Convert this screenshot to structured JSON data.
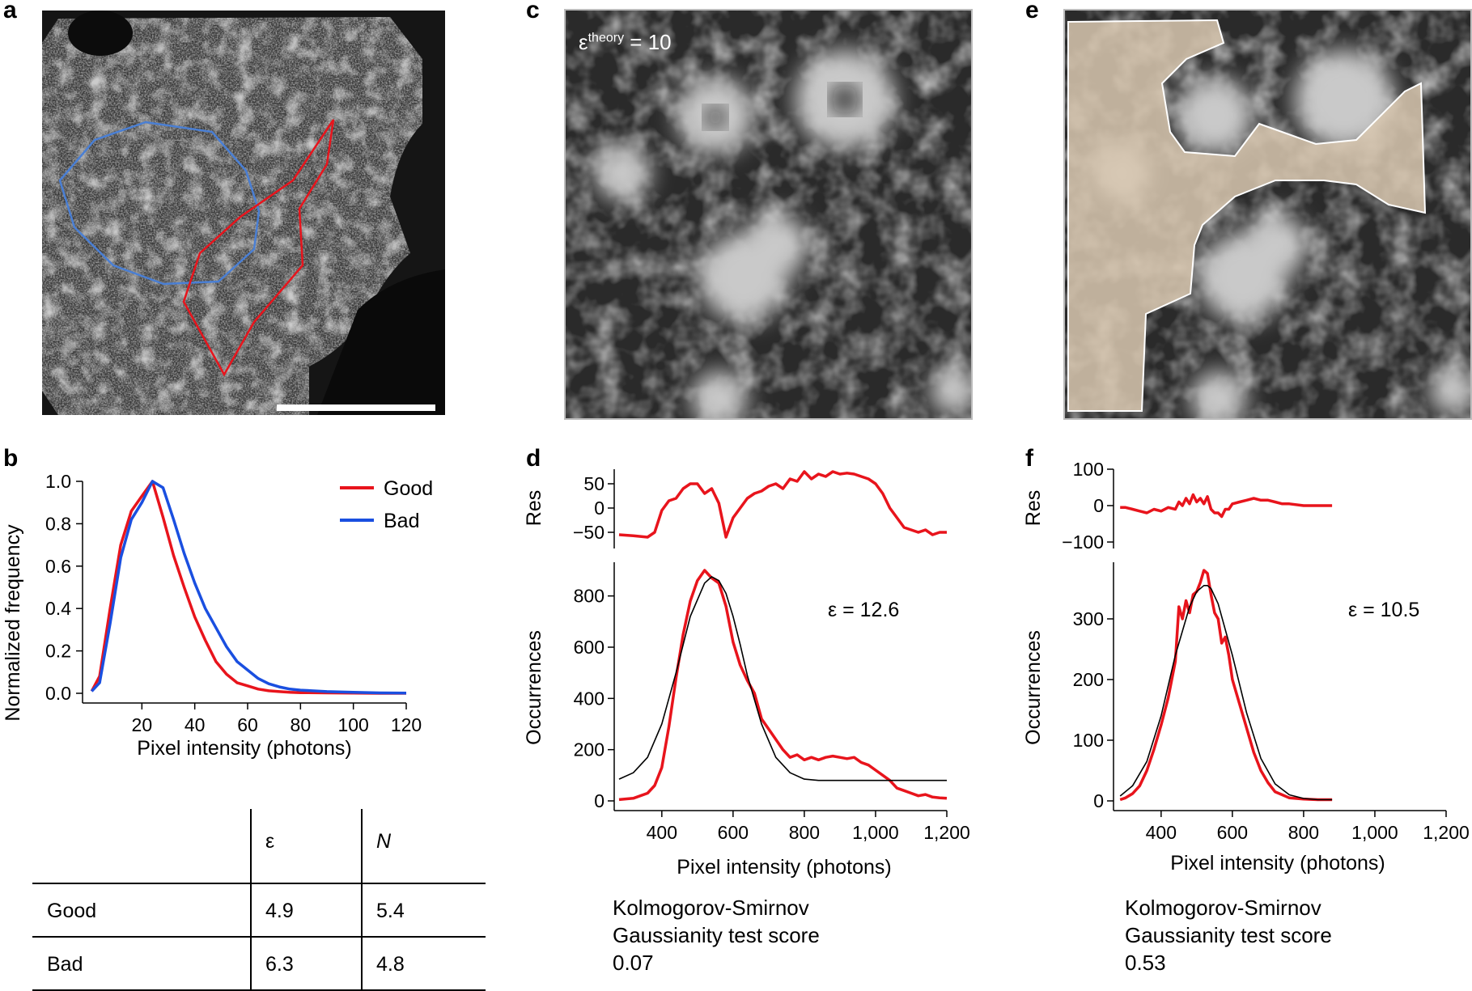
{
  "panels": {
    "a": {
      "letter": "a"
    },
    "b": {
      "letter": "b"
    },
    "c": {
      "letter": "c",
      "annotation_symbol": "ε",
      "annotation_sup": "theory",
      "annotation_value": "= 10"
    },
    "d": {
      "letter": "d"
    },
    "e": {
      "letter": "e"
    },
    "f": {
      "letter": "f"
    }
  },
  "colors": {
    "good": "#e8141c",
    "bad": "#1a4fe0",
    "fit": "#000000",
    "roi_blue": "#4a7fd4",
    "roi_red": "#e8141c",
    "mask": "#d9c8b0"
  },
  "chart_data": [
    {
      "id": "b",
      "type": "line",
      "xlabel": "Pixel intensity (photons)",
      "ylabel": "Normalized frequency",
      "xlim": [
        0,
        120
      ],
      "ylim": [
        0,
        1.0
      ],
      "xticks": [
        "20",
        "40",
        "60",
        "80",
        "100",
        "120"
      ],
      "yticks": [
        "0.0",
        "0.2",
        "0.4",
        "0.6",
        "0.8",
        "1.0"
      ],
      "legend": [
        "Good",
        "Bad"
      ],
      "series": [
        {
          "name": "Good",
          "color": "#e8141c",
          "x": [
            1,
            4,
            8,
            12,
            16,
            20,
            24,
            28,
            32,
            36,
            40,
            44,
            48,
            52,
            56,
            60,
            64,
            68,
            72,
            76,
            80,
            90,
            100,
            110,
            120
          ],
          "y": [
            0.01,
            0.08,
            0.4,
            0.7,
            0.86,
            0.93,
            1.0,
            0.83,
            0.65,
            0.5,
            0.36,
            0.25,
            0.15,
            0.09,
            0.05,
            0.035,
            0.02,
            0.012,
            0.008,
            0.005,
            0.003,
            0.002,
            0.001,
            0.0,
            0.0
          ]
        },
        {
          "name": "Bad",
          "color": "#1a4fe0",
          "x": [
            1,
            4,
            8,
            12,
            16,
            20,
            24,
            28,
            32,
            36,
            40,
            44,
            48,
            52,
            56,
            60,
            64,
            68,
            72,
            76,
            80,
            90,
            100,
            110,
            120
          ],
          "y": [
            0.01,
            0.05,
            0.33,
            0.64,
            0.82,
            0.9,
            1.0,
            0.97,
            0.82,
            0.66,
            0.52,
            0.4,
            0.31,
            0.22,
            0.15,
            0.11,
            0.07,
            0.045,
            0.03,
            0.02,
            0.015,
            0.008,
            0.005,
            0.002,
            0.001
          ]
        }
      ]
    },
    {
      "id": "d",
      "type": "line",
      "xlabel": "Pixel intensity (photons)",
      "ylabel": "Occurrences",
      "res_ylabel": "Res",
      "xlim": [
        280,
        1200
      ],
      "ylim": [
        0,
        900
      ],
      "res_ylim": [
        -70,
        80
      ],
      "xticks": [
        "400",
        "600",
        "800",
        "1,000",
        "1,200"
      ],
      "yticks": [
        "0",
        "200",
        "400",
        "600",
        "800"
      ],
      "res_yticks": [
        "50",
        "0",
        "−50"
      ],
      "annotation": "ε = 12.6",
      "series": [
        {
          "name": "data",
          "color": "#e8141c",
          "x": [
            280,
            320,
            360,
            380,
            400,
            420,
            440,
            460,
            480,
            500,
            520,
            540,
            560,
            580,
            600,
            620,
            640,
            660,
            680,
            700,
            720,
            740,
            760,
            780,
            800,
            820,
            840,
            860,
            880,
            900,
            920,
            940,
            960,
            980,
            1000,
            1020,
            1040,
            1060,
            1080,
            1100,
            1120,
            1140,
            1160,
            1180,
            1200
          ],
          "y": [
            5,
            10,
            30,
            60,
            130,
            290,
            480,
            650,
            780,
            860,
            900,
            870,
            850,
            760,
            620,
            530,
            470,
            420,
            320,
            280,
            240,
            200,
            170,
            180,
            160,
            170,
            160,
            170,
            175,
            170,
            165,
            170,
            150,
            140,
            120,
            100,
            80,
            50,
            40,
            30,
            20,
            25,
            15,
            12,
            10
          ]
        },
        {
          "name": "fit",
          "color": "#000000",
          "x": [
            280,
            320,
            360,
            400,
            440,
            480,
            520,
            540,
            560,
            580,
            600,
            620,
            640,
            680,
            720,
            760,
            800,
            840,
            880,
            920,
            960,
            1000,
            1040,
            1080,
            1120,
            1160,
            1200
          ],
          "y": [
            85,
            110,
            170,
            300,
            500,
            720,
            850,
            875,
            860,
            810,
            720,
            610,
            490,
            300,
            170,
            110,
            85,
            80,
            80,
            80,
            80,
            80,
            80,
            80,
            80,
            80,
            80
          ]
        },
        {
          "name": "residual",
          "color": "#e8141c",
          "x": [
            280,
            320,
            360,
            380,
            400,
            420,
            440,
            460,
            480,
            500,
            520,
            540,
            560,
            580,
            600,
            620,
            640,
            660,
            680,
            700,
            720,
            740,
            760,
            780,
            800,
            820,
            840,
            860,
            880,
            900,
            920,
            940,
            960,
            980,
            1000,
            1020,
            1040,
            1060,
            1080,
            1100,
            1120,
            1140,
            1160,
            1180,
            1200
          ],
          "y": [
            -55,
            -57,
            -60,
            -50,
            -5,
            15,
            20,
            40,
            50,
            50,
            30,
            40,
            10,
            -60,
            -20,
            0,
            20,
            30,
            35,
            45,
            50,
            40,
            60,
            55,
            75,
            60,
            70,
            65,
            75,
            70,
            72,
            70,
            65,
            60,
            50,
            30,
            0,
            -20,
            -40,
            -45,
            -50,
            -45,
            -55,
            -50,
            -50
          ]
        }
      ]
    },
    {
      "id": "f",
      "type": "line",
      "xlabel": "Pixel intensity (photons)",
      "ylabel": "Occurrences",
      "res_ylabel": "Res",
      "xlim": [
        280,
        1200
      ],
      "ylim": [
        0,
        380
      ],
      "res_ylim": [
        -100,
        100
      ],
      "xticks": [
        "400",
        "600",
        "800",
        "1,000",
        "1,200"
      ],
      "yticks": [
        "0",
        "100",
        "200",
        "300"
      ],
      "res_yticks": [
        "100",
        "0",
        "−100"
      ],
      "annotation": "ε = 10.5",
      "series": [
        {
          "name": "data",
          "color": "#e8141c",
          "x": [
            285,
            300,
            320,
            340,
            360,
            380,
            400,
            420,
            440,
            450,
            460,
            470,
            480,
            490,
            500,
            510,
            520,
            530,
            540,
            550,
            560,
            570,
            580,
            590,
            600,
            620,
            640,
            660,
            680,
            700,
            720,
            740,
            760,
            800,
            840,
            880
          ],
          "y": [
            2,
            5,
            12,
            25,
            50,
            85,
            125,
            170,
            230,
            320,
            300,
            330,
            310,
            340,
            345,
            360,
            380,
            375,
            340,
            310,
            300,
            260,
            270,
            240,
            200,
            160,
            120,
            80,
            50,
            30,
            15,
            10,
            5,
            3,
            2,
            2
          ]
        },
        {
          "name": "fit",
          "color": "#000000",
          "x": [
            285,
            320,
            360,
            400,
            440,
            480,
            500,
            520,
            530,
            540,
            560,
            600,
            640,
            680,
            720,
            760,
            800,
            840,
            880
          ],
          "y": [
            8,
            25,
            65,
            140,
            240,
            320,
            345,
            355,
            355,
            350,
            325,
            240,
            145,
            70,
            28,
            10,
            4,
            2,
            2
          ]
        },
        {
          "name": "residual",
          "color": "#e8141c",
          "x": [
            285,
            300,
            320,
            340,
            360,
            380,
            400,
            420,
            440,
            450,
            460,
            470,
            480,
            490,
            500,
            510,
            520,
            530,
            540,
            550,
            560,
            570,
            580,
            590,
            600,
            620,
            640,
            660,
            680,
            700,
            720,
            740,
            760,
            800,
            840,
            880
          ],
          "y": [
            -5,
            -5,
            -10,
            -15,
            -20,
            -10,
            -15,
            -5,
            -10,
            10,
            0,
            20,
            5,
            30,
            10,
            20,
            5,
            25,
            -10,
            -20,
            -20,
            -30,
            -10,
            -10,
            5,
            10,
            15,
            20,
            15,
            15,
            10,
            5,
            5,
            0,
            0,
            0
          ]
        }
      ]
    }
  ],
  "table": {
    "headers": [
      "",
      "ε",
      "N"
    ],
    "rows": [
      {
        "label": "Good",
        "epsilon": "4.9",
        "n": "5.4"
      },
      {
        "label": "Bad",
        "epsilon": "6.3",
        "n": "4.8"
      }
    ]
  },
  "ks_d": {
    "line1": "Kolmogorov-Smirnov",
    "line2": "Gaussianity test score",
    "value": "0.07"
  },
  "ks_f": {
    "line1": "Kolmogorov-Smirnov",
    "line2": "Gaussianity test score",
    "value": "0.53"
  }
}
